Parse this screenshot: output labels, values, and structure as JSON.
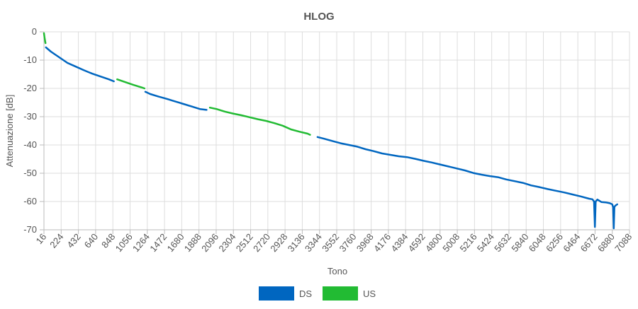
{
  "chart_data": {
    "type": "line",
    "title": "HLOG",
    "xlabel": "Tono",
    "ylabel": "Attenuazione [dB]",
    "xlim": [
      16,
      7088
    ],
    "ylim": [
      -70,
      0
    ],
    "x_ticks": [
      16,
      224,
      432,
      640,
      848,
      1056,
      1264,
      1472,
      1680,
      1888,
      2096,
      2304,
      2512,
      2720,
      2928,
      3136,
      3344,
      3552,
      3760,
      3968,
      4176,
      4384,
      4592,
      4800,
      5008,
      5216,
      5424,
      5632,
      5840,
      6048,
      6256,
      6464,
      6672,
      6880,
      7088
    ],
    "y_ticks": [
      0,
      -10,
      -20,
      -30,
      -40,
      -50,
      -60,
      -70
    ],
    "grid": true,
    "legend_position": "bottom",
    "series": [
      {
        "name": "DS",
        "color": "#0066c0",
        "segments": [
          [
            [
              40,
              -5.5
            ],
            [
              100,
              -7.0
            ],
            [
              200,
              -9.0
            ],
            [
              300,
              -11.0
            ],
            [
              400,
              -12.3
            ],
            [
              500,
              -13.6
            ],
            [
              600,
              -14.8
            ],
            [
              700,
              -15.8
            ],
            [
              800,
              -16.8
            ],
            [
              860,
              -17.5
            ]
          ],
          [
            [
              1240,
              -21.2
            ],
            [
              1300,
              -22.0
            ],
            [
              1400,
              -22.9
            ],
            [
              1500,
              -23.7
            ],
            [
              1600,
              -24.6
            ],
            [
              1700,
              -25.5
            ],
            [
              1800,
              -26.4
            ],
            [
              1900,
              -27.3
            ],
            [
              1980,
              -27.6
            ]
          ],
          [
            [
              3320,
              -37.2
            ],
            [
              3400,
              -37.8
            ],
            [
              3500,
              -38.6
            ],
            [
              3600,
              -39.4
            ],
            [
              3700,
              -40.0
            ],
            [
              3800,
              -40.6
            ],
            [
              3900,
              -41.5
            ],
            [
              4000,
              -42.2
            ],
            [
              4100,
              -43.0
            ],
            [
              4200,
              -43.5
            ],
            [
              4300,
              -44.0
            ],
            [
              4400,
              -44.3
            ],
            [
              4500,
              -44.9
            ],
            [
              4600,
              -45.6
            ],
            [
              4700,
              -46.2
            ],
            [
              4800,
              -46.9
            ],
            [
              4900,
              -47.6
            ],
            [
              5000,
              -48.3
            ],
            [
              5100,
              -49.0
            ],
            [
              5200,
              -49.9
            ],
            [
              5300,
              -50.5
            ],
            [
              5400,
              -51.0
            ],
            [
              5500,
              -51.4
            ],
            [
              5600,
              -52.2
            ],
            [
              5700,
              -52.8
            ],
            [
              5800,
              -53.4
            ],
            [
              5900,
              -54.3
            ],
            [
              6000,
              -54.9
            ],
            [
              6100,
              -55.6
            ],
            [
              6200,
              -56.2
            ],
            [
              6300,
              -56.8
            ],
            [
              6400,
              -57.5
            ],
            [
              6500,
              -58.2
            ],
            [
              6600,
              -59.0
            ],
            [
              6640,
              -59.2
            ],
            [
              6660,
              -60.0
            ],
            [
              6670,
              -69.0
            ],
            [
              6680,
              -60.0
            ],
            [
              6700,
              -59.3
            ],
            [
              6750,
              -60.2
            ],
            [
              6800,
              -60.3
            ],
            [
              6850,
              -60.6
            ],
            [
              6880,
              -61.0
            ],
            [
              6890,
              -62.0
            ],
            [
              6898,
              -69.5
            ],
            [
              6906,
              -62.0
            ],
            [
              6915,
              -61.5
            ],
            [
              6940,
              -61.0
            ]
          ]
        ]
      },
      {
        "name": "US",
        "color": "#22bb33",
        "segments": [
          [
            [
              16,
              -0.5
            ],
            [
              25,
              -2.5
            ],
            [
              35,
              -4.0
            ]
          ],
          [
            [
              900,
              -16.8
            ],
            [
              1000,
              -17.8
            ],
            [
              1100,
              -18.8
            ],
            [
              1200,
              -19.7
            ],
            [
              1230,
              -20.0
            ]
          ],
          [
            [
              2020,
              -26.8
            ],
            [
              2100,
              -27.3
            ],
            [
              2200,
              -28.2
            ],
            [
              2300,
              -28.9
            ],
            [
              2400,
              -29.5
            ],
            [
              2500,
              -30.2
            ],
            [
              2600,
              -30.9
            ],
            [
              2700,
              -31.5
            ],
            [
              2800,
              -32.3
            ],
            [
              2900,
              -33.2
            ],
            [
              3000,
              -34.5
            ],
            [
              3100,
              -35.3
            ],
            [
              3200,
              -36.0
            ],
            [
              3230,
              -36.4
            ]
          ]
        ]
      }
    ]
  }
}
